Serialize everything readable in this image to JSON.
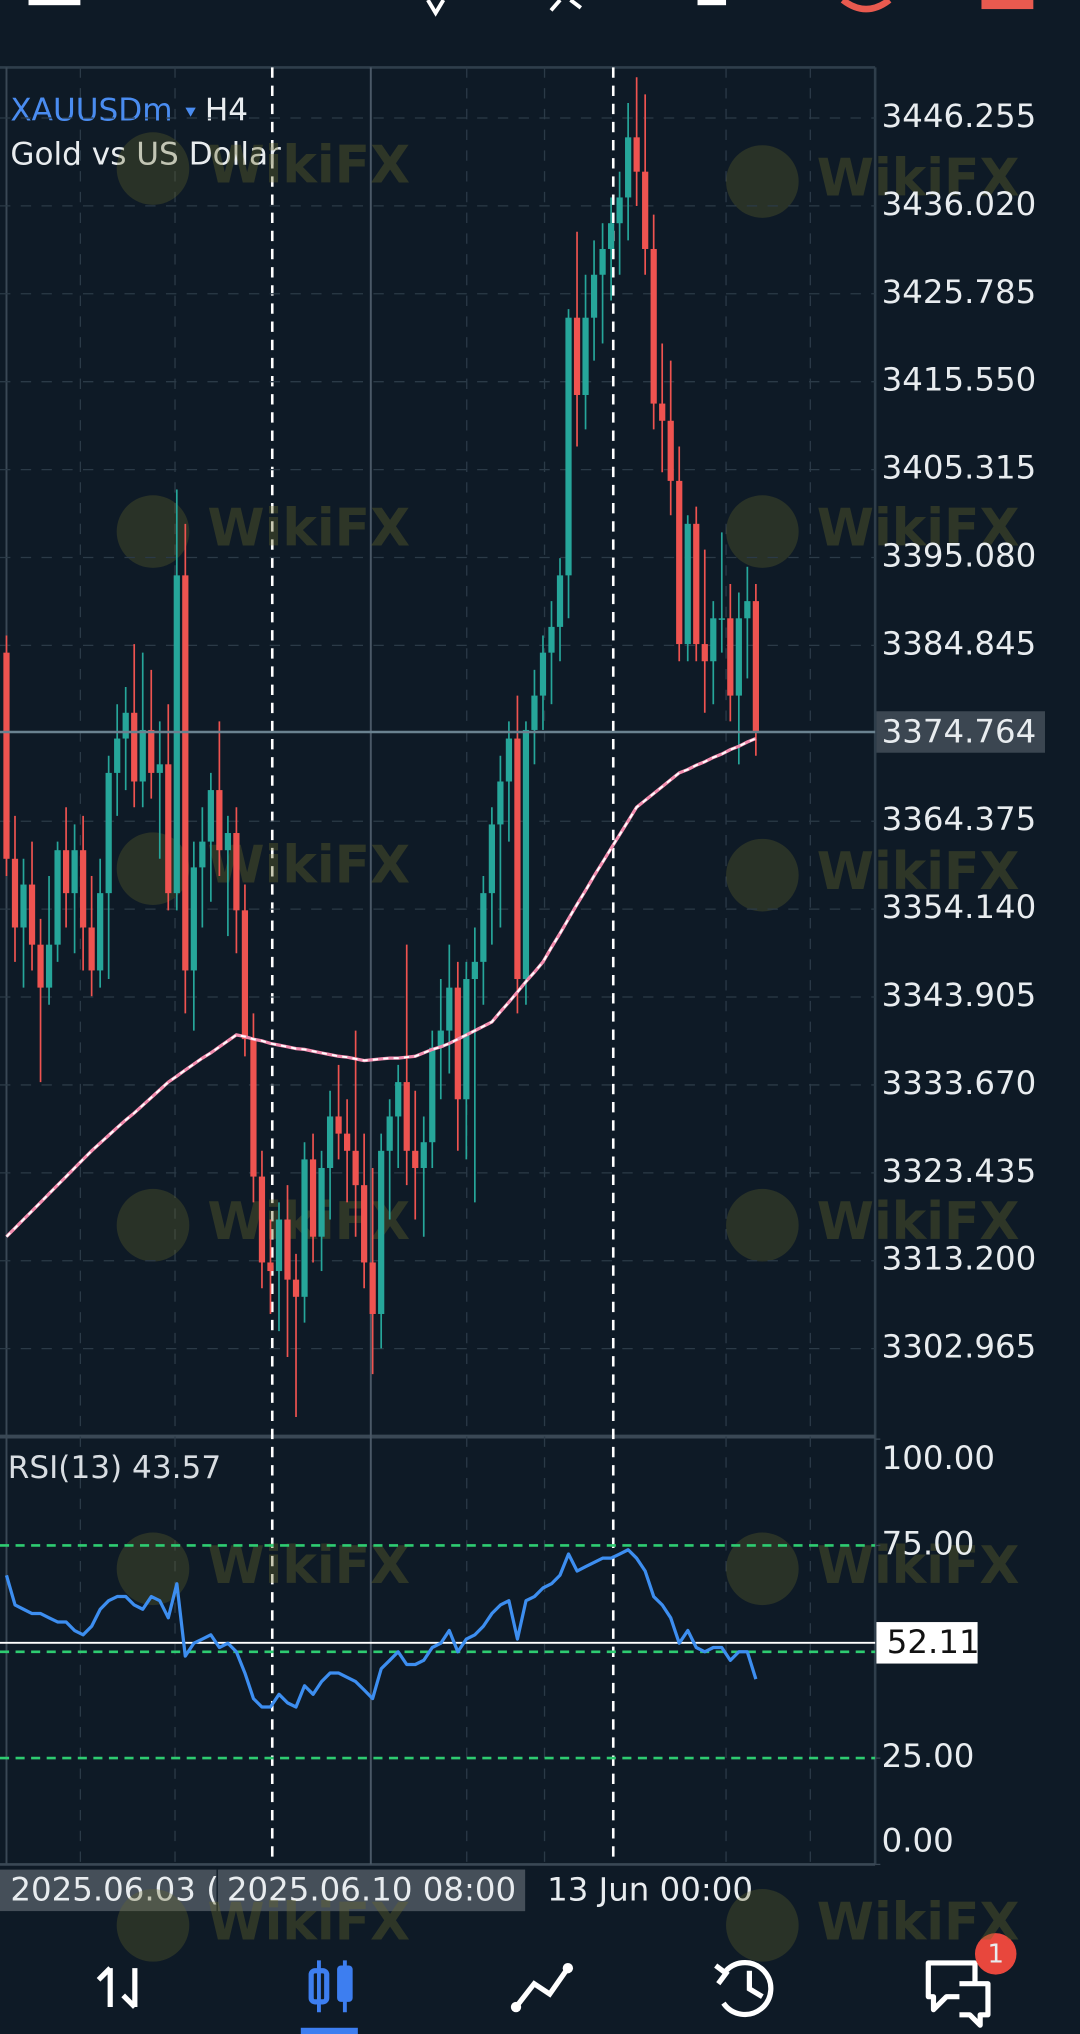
{
  "app": {
    "watermark": "WikiFX",
    "notification_count": 1
  },
  "chart_data": [
    {
      "type": "candlestick",
      "symbol": "XAUUSDm",
      "timeframe": "H4",
      "subtitle": "Gold vs US Dollar",
      "up_color": "#26a69a",
      "down_color": "#ef5350",
      "ylim": [
        3292.73,
        3452.14
      ],
      "yticks": [
        3446.255,
        {
          "value": 3436.02,
          "label": "3436.020"
        },
        3425.785,
        {
          "value": 3415.55,
          "label": "3415.550"
        },
        3405.315,
        {
          "value": 3395.08,
          "label": "3395.080"
        },
        3384.845,
        3364.375,
        {
          "value": 3354.14,
          "label": "3354.140"
        },
        3343.905,
        {
          "value": 3333.67,
          "label": "3333.670"
        },
        3323.435,
        {
          "value": 3313.2,
          "label": "3313.200"
        },
        3302.965
      ],
      "current_price": 3374.764,
      "grid": true,
      "time_labels": [
        "2025.06.03 (",
        "2025.06.10 08:00",
        "13 Jun 00:00"
      ],
      "ohlc": [
        [
          3384,
          3386,
          3358,
          3360
        ],
        [
          3360,
          3365,
          3348,
          3352
        ],
        [
          3352,
          3360,
          3345,
          3357
        ],
        [
          3357,
          3362,
          3347,
          3350
        ],
        [
          3350,
          3353,
          3334,
          3345
        ],
        [
          3345,
          3358,
          3343,
          3350
        ],
        [
          3350,
          3362,
          3348,
          3361
        ],
        [
          3361,
          3366,
          3352,
          3356
        ],
        [
          3356,
          3364,
          3349,
          3361
        ],
        [
          3361,
          3365,
          3347,
          3352
        ],
        [
          3352,
          3358,
          3344,
          3347
        ],
        [
          3347,
          3360,
          3345,
          3356
        ],
        [
          3356,
          3372,
          3346,
          3370
        ],
        [
          3370,
          3378,
          3365,
          3374
        ],
        [
          3374,
          3380,
          3368,
          3377
        ],
        [
          3377,
          3385,
          3366,
          3369
        ],
        [
          3369,
          3384,
          3366,
          3375
        ],
        [
          3375,
          3382,
          3367,
          3370
        ],
        [
          3370,
          3376,
          3360,
          3371
        ],
        [
          3371,
          3378,
          3354,
          3356
        ],
        [
          3356,
          3403,
          3354,
          3393
        ],
        [
          3393,
          3399,
          3342,
          3347
        ],
        [
          3347,
          3362,
          3340,
          3359
        ],
        [
          3359,
          3366,
          3352,
          3362
        ],
        [
          3362,
          3370,
          3355,
          3368
        ],
        [
          3368,
          3376,
          3358,
          3361
        ],
        [
          3361,
          3365,
          3351,
          3363
        ],
        [
          3363,
          3366,
          3349,
          3354
        ],
        [
          3354,
          3357,
          3337,
          3339
        ],
        [
          3339,
          3342,
          3320,
          3323
        ],
        [
          3323,
          3326,
          3310,
          3313
        ],
        [
          3313,
          3318,
          3307,
          3312
        ],
        [
          3312,
          3320,
          3305,
          3318
        ],
        [
          3318,
          3322,
          3302,
          3311
        ],
        [
          3311,
          3314,
          3295,
          3309
        ],
        [
          3309,
          3327,
          3306,
          3325
        ],
        [
          3325,
          3328,
          3313,
          3316
        ],
        [
          3316,
          3326,
          3312,
          3324
        ],
        [
          3324,
          3333,
          3318,
          3330
        ],
        [
          3330,
          3336,
          3325,
          3328
        ],
        [
          3328,
          3332,
          3320,
          3326
        ],
        [
          3326,
          3340,
          3316,
          3322
        ],
        [
          3322,
          3328,
          3310,
          3313
        ],
        [
          3313,
          3324,
          3300,
          3307
        ],
        [
          3307,
          3328,
          3303,
          3326
        ],
        [
          3326,
          3332,
          3318,
          3330
        ],
        [
          3330,
          3336,
          3324,
          3334
        ],
        [
          3334,
          3350,
          3322,
          3326
        ],
        [
          3326,
          3333,
          3318,
          3324
        ],
        [
          3324,
          3330,
          3316,
          3327
        ],
        [
          3327,
          3340,
          3324,
          3338
        ],
        [
          3338,
          3346,
          3332,
          3340
        ],
        [
          3340,
          3350,
          3335,
          3345
        ],
        [
          3345,
          3348,
          3326,
          3332
        ],
        [
          3332,
          3348,
          3325,
          3346
        ],
        [
          3346,
          3352,
          3320,
          3348
        ],
        [
          3348,
          3358,
          3343,
          3356
        ],
        [
          3356,
          3366,
          3350,
          3364
        ],
        [
          3364,
          3372,
          3352,
          3369
        ],
        [
          3369,
          3376,
          3362,
          3374
        ],
        [
          3374,
          3379,
          3342,
          3346
        ],
        [
          3346,
          3376,
          3343,
          3375
        ],
        [
          3375,
          3382,
          3371,
          3379
        ],
        [
          3379,
          3386,
          3375,
          3384
        ],
        [
          3384,
          3390,
          3378,
          3387
        ],
        [
          3387,
          3395,
          3383,
          3393
        ],
        [
          3393,
          3424,
          3388,
          3423
        ],
        [
          3423,
          3433,
          3408,
          3414
        ],
        [
          3414,
          3428,
          3410,
          3423
        ],
        [
          3423,
          3432,
          3418,
          3428
        ],
        [
          3428,
          3434,
          3420,
          3431
        ],
        [
          3431,
          3437,
          3425,
          3434
        ],
        [
          3434,
          3440,
          3428,
          3437
        ],
        [
          3437,
          3448,
          3432,
          3444
        ],
        [
          3444,
          3451,
          3436,
          3440
        ],
        [
          3440,
          3449,
          3428,
          3431
        ],
        [
          3431,
          3435,
          3410,
          3413
        ],
        [
          3413,
          3420,
          3405,
          3411
        ],
        [
          3411,
          3418,
          3400,
          3404
        ],
        [
          3404,
          3408,
          3383,
          3385
        ],
        [
          3385,
          3400,
          3383,
          3399
        ],
        [
          3399,
          3401,
          3383,
          3385
        ],
        [
          3385,
          3396,
          3377,
          3383
        ],
        [
          3383,
          3390,
          3378,
          3388
        ],
        [
          3388,
          3398,
          3384,
          3388
        ],
        [
          3388,
          3392,
          3376,
          3379
        ],
        [
          3379,
          3391,
          3371,
          3388
        ],
        [
          3388,
          3394,
          3381,
          3390
        ],
        [
          3390,
          3392,
          3372,
          3374.764
        ]
      ],
      "ma": {
        "color": "#f48fb1",
        "values": [
          3316,
          3317,
          3318,
          3319,
          3320,
          3321,
          3322,
          3323,
          3324,
          3325,
          3326,
          3326.9,
          3327.8,
          3328.7,
          3329.6,
          3330.4,
          3331.3,
          3332.2,
          3333.1,
          3334,
          3334.7,
          3335.4,
          3336.1,
          3336.8,
          3337.4,
          3338.1,
          3338.8,
          3339.5,
          3339.3,
          3339,
          3338.8,
          3338.5,
          3338.3,
          3338.1,
          3337.9,
          3337.8,
          3337.6,
          3337.4,
          3337.2,
          3337,
          3336.9,
          3336.7,
          3336.5,
          3336.6,
          3336.7,
          3336.8,
          3336.8,
          3336.9,
          3337,
          3337.4,
          3337.8,
          3338.1,
          3338.5,
          3339,
          3339.5,
          3340,
          3340.5,
          3341,
          3342.2,
          3343.3,
          3344.5,
          3345.7,
          3346.8,
          3348,
          3349.7,
          3351.3,
          3353,
          3354.7,
          3356.3,
          3358,
          3359.6,
          3361.2,
          3362.8,
          3364.4,
          3366,
          3366.8,
          3367.6,
          3368.4,
          3369.2,
          3370,
          3370.4,
          3370.9,
          3371.3,
          3371.8,
          3372.2,
          3372.7,
          3373.1,
          3373.6,
          3374
        ]
      }
    },
    {
      "type": "line",
      "indicator": "RSI(13)",
      "color": "#3d8ef0",
      "ylim": [
        0,
        100
      ],
      "yticks": [
        {
          "value": 100,
          "label": "100.00"
        },
        {
          "value": 75,
          "label": "75.00"
        },
        {
          "value": 25,
          "label": "25.00"
        },
        {
          "value": 0,
          "label": "0.00"
        }
      ],
      "levels": [
        75,
        50,
        25
      ],
      "level_color": "#2ecc71",
      "cursor_value": 52.11,
      "values": [
        68,
        61,
        60,
        59,
        59,
        58,
        57,
        57,
        55,
        54,
        56,
        60,
        62,
        63,
        63,
        61,
        60,
        63,
        62,
        58,
        66,
        49,
        52,
        53,
        54,
        51,
        52,
        50,
        45,
        39,
        37,
        37,
        40,
        38,
        37,
        42,
        40,
        43,
        45,
        45,
        44,
        43,
        41,
        39,
        46,
        48,
        50,
        47,
        47,
        48,
        51,
        52,
        55,
        50,
        53,
        54,
        56,
        59,
        61,
        62,
        53,
        62,
        63,
        65,
        66,
        68,
        73,
        69,
        70,
        71,
        72,
        72,
        73,
        74,
        72,
        69,
        63,
        61,
        58,
        52,
        55,
        51,
        50,
        51,
        51,
        48,
        50,
        50,
        43.57
      ]
    }
  ]
}
